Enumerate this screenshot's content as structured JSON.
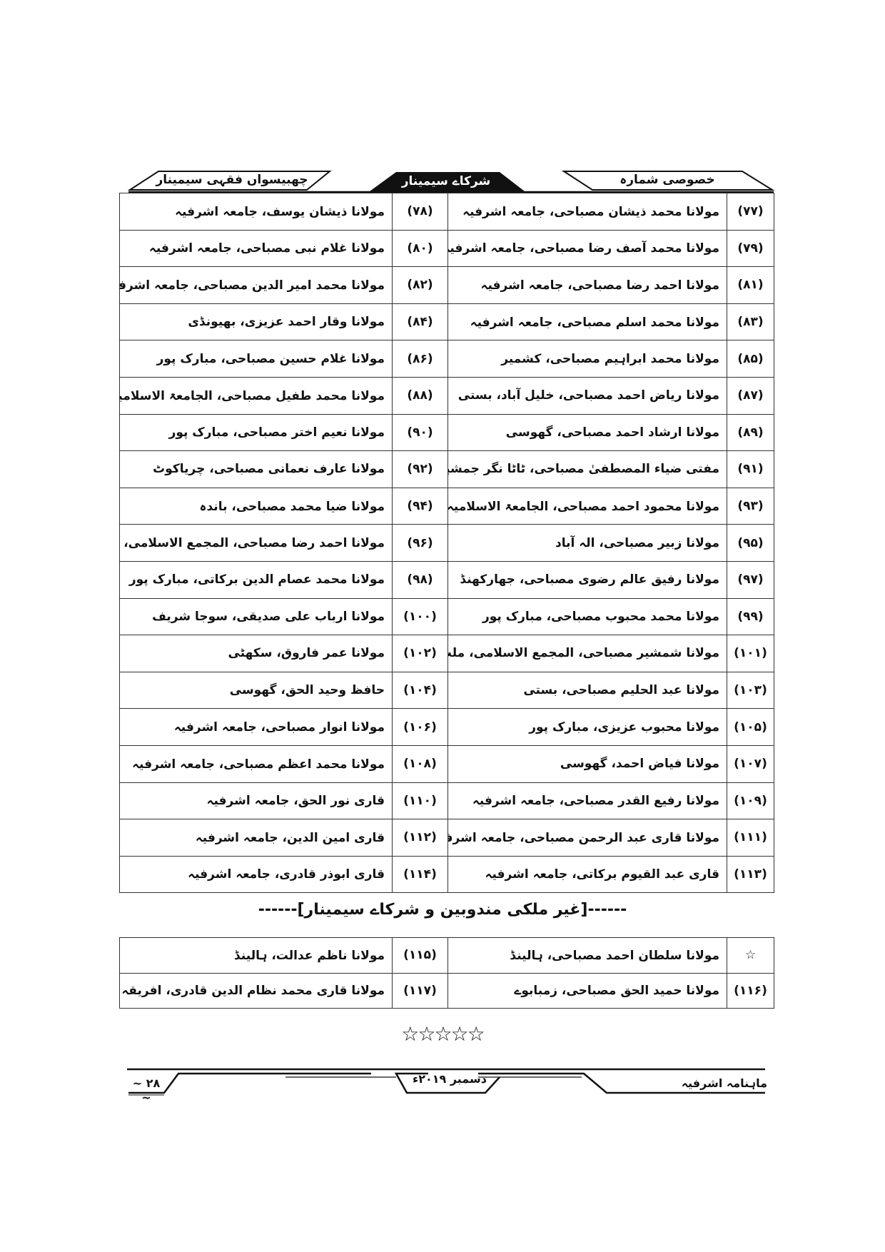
{
  "header": {
    "left_label": "چھبیسواں فقہی سیمینار",
    "center_label": "شرکاے سیمینار",
    "right_label": "خصوصی شمارہ"
  },
  "participants": [
    {
      "right_num": "(۷۷)",
      "right_name": "مولانا محمد ذیشان مصباحی، جامعہ اشرفیہ",
      "left_num": "(۷۸)",
      "left_name": "مولانا ذیشان یوسف، جامعہ اشرفیہ"
    },
    {
      "right_num": "(۷۹)",
      "right_name": "مولانا محمد آصف رضا مصباحی، جامعہ اشرفیہ",
      "left_num": "(۸۰)",
      "left_name": "مولانا غلام نبی مصباحی، جامعہ اشرفیہ"
    },
    {
      "right_num": "(۸۱)",
      "right_name": "مولانا احمد رضا مصباحی، جامعہ اشرفیہ",
      "left_num": "(۸۲)",
      "left_name": "مولانا محمد امیر الدین مصباحی، جامعہ اشرفیہ"
    },
    {
      "right_num": "(۸۳)",
      "right_name": "مولانا محمد اسلم مصباحی، جامعہ اشرفیہ",
      "left_num": "(۸۴)",
      "left_name": "مولانا وقار احمد عزیزی، بھیونڈی"
    },
    {
      "right_num": "(۸۵)",
      "right_name": "مولانا محمد ابراہیم مصباحی، کشمیر",
      "left_num": "(۸۶)",
      "left_name": "مولانا غلام حسین مصباحی، مبارک پور"
    },
    {
      "right_num": "(۸۷)",
      "right_name": "مولانا ریاض احمد مصباحی، خلیل آباد، بستی",
      "left_num": "(۸۸)",
      "left_name": "مولانا محمد طفیل مصباحی، الجامعۃ الاسلامیہ اشرفیہ، سکھٹی"
    },
    {
      "right_num": "(۸۹)",
      "right_name": "مولانا ارشاد احمد مصباحی، گھوسی",
      "left_num": "(۹۰)",
      "left_name": "مولانا نعیم اختر مصباحی، مبارک پور"
    },
    {
      "right_num": "(۹۱)",
      "right_name": "مفتی ضیاء المصطفیٰ مصباحی، ٹاٹا نگر جمشید پور",
      "left_num": "(۹۲)",
      "left_name": "مولانا عارف نعمانی مصباحی، چریاکوٹ"
    },
    {
      "right_num": "(۹۳)",
      "right_name": "مولانا محمود احمد مصباحی، الجامعۃ الاسلامیہ اشرفیہ، سکھٹی",
      "left_num": "(۹۴)",
      "left_name": "مولانا ضیا محمد مصباحی، باندہ"
    },
    {
      "right_num": "(۹۵)",
      "right_name": "مولانا زبیر مصباحی، الہ آباد",
      "left_num": "(۹۶)",
      "left_name": "مولانا احمد رضا مصباحی، المجمع الاسلامی، ملت نگر"
    },
    {
      "right_num": "(۹۷)",
      "right_name": "مولانا رفیق عالم رضوی مصباحی، جھارکھنڈ",
      "left_num": "(۹۸)",
      "left_name": "مولانا محمد عصام الدین برکاتی، مبارک پور"
    },
    {
      "right_num": "(۹۹)",
      "right_name": "مولانا محمد محبوب مصباحی، مبارک پور",
      "left_num": "(۱۰۰)",
      "left_name": "مولانا ارباب علی صدیقی، سوجا شریف"
    },
    {
      "right_num": "(۱۰۱)",
      "right_name": "مولانا شمشیر مصباحی، المجمع الاسلامی، ملت نگر",
      "left_num": "(۱۰۲)",
      "left_name": "مولانا عمر فاروق، سکھٹی"
    },
    {
      "right_num": "(۱۰۳)",
      "right_name": "مولانا عبد الحلیم مصباحی، بستی",
      "left_num": "(۱۰۴)",
      "left_name": "حافظ وحید الحق، گھوسی"
    },
    {
      "right_num": "(۱۰۵)",
      "right_name": "مولانا محبوب عزیزی، مبارک پور",
      "left_num": "(۱۰۶)",
      "left_name": "مولانا انوار مصباحی، جامعہ اشرفیہ"
    },
    {
      "right_num": "(۱۰۷)",
      "right_name": "مولانا فیاض احمد، گھوسی",
      "left_num": "(۱۰۸)",
      "left_name": "مولانا محمد اعظم مصباحی، جامعہ اشرفیہ"
    },
    {
      "right_num": "(۱۰۹)",
      "right_name": "مولانا رفیع القدر مصباحی، جامعہ اشرفیہ",
      "left_num": "(۱۱۰)",
      "left_name": "قاری نور الحق، جامعہ اشرفیہ"
    },
    {
      "right_num": "(۱۱۱)",
      "right_name": "مولانا قاری عبد الرحمن مصباحی، جامعہ اشرفیہ",
      "left_num": "(۱۱۲)",
      "left_name": "قاری امین الدین، جامعہ اشرفیہ"
    },
    {
      "right_num": "(۱۱۳)",
      "right_name": "قاری عبد القیوم برکاتی، جامعہ اشرفیہ",
      "left_num": "(۱۱۴)",
      "left_name": "قاری ابوذر قادری، جامعہ اشرفیہ"
    }
  ],
  "foreign_section": {
    "title": "------[غیر ملکی مندوبین و شرکاے سیمینار]------",
    "rows": [
      {
        "right_num": "☆",
        "right_name": "مولانا سلطان احمد مصباحی، ہالینڈ",
        "left_num": "(۱۱۵)",
        "left_name": "مولانا ناظم عدالت، ہالینڈ"
      },
      {
        "right_num": "(۱۱۶)",
        "right_name": "مولانا حمید الحق مصباحی، زمبابوے",
        "left_num": "(۱۱۷)",
        "left_name": "مولانا قاری محمد نظام الدین قادری، افریقہ"
      }
    ]
  },
  "end_ornament": "☆☆☆☆☆",
  "footer": {
    "magazine": "ماہنامہ اشرفیہ",
    "issue_date": "دسمبر ۲۰۱۹ء",
    "page_number": "~ ۲۸ ~"
  }
}
